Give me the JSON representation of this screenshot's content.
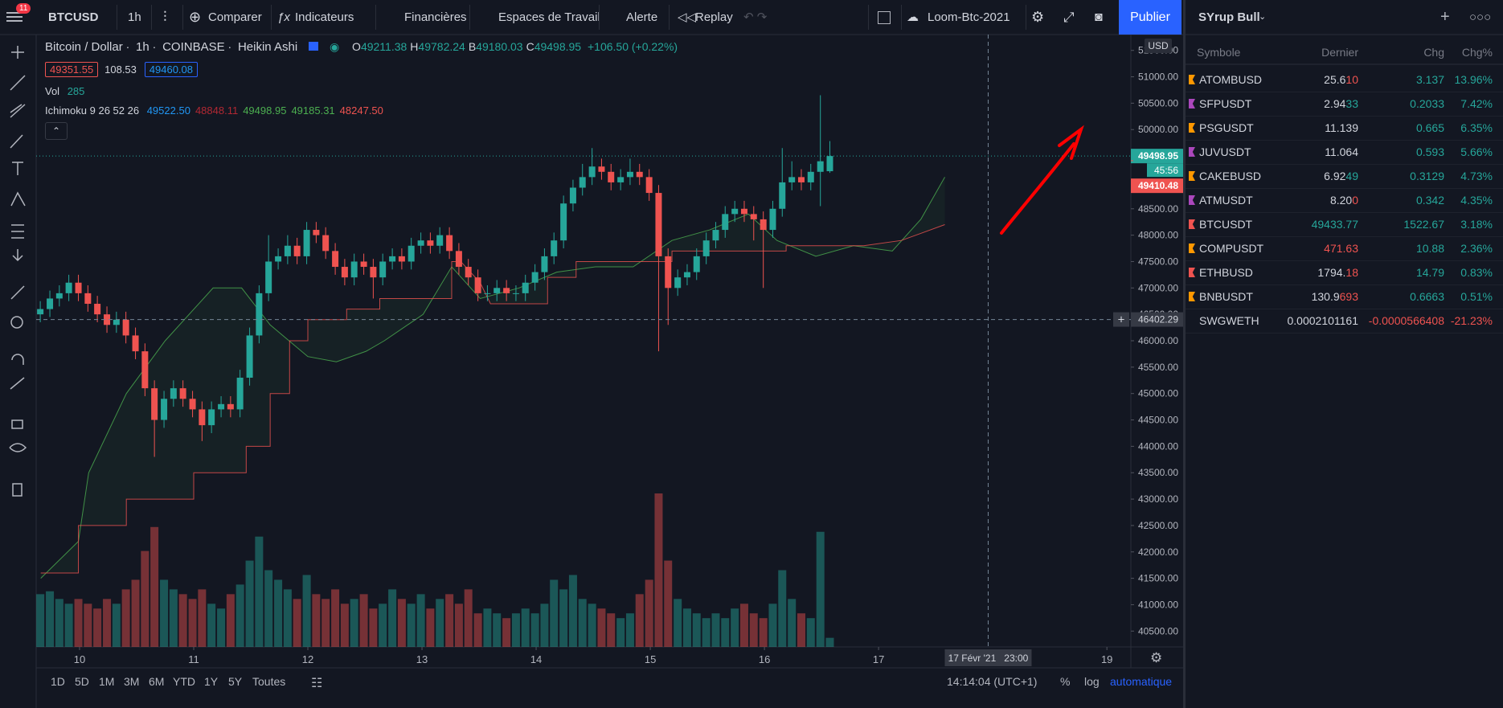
{
  "toolbar": {
    "badge": "11",
    "symbol": "BTCUSD",
    "interval": "1h",
    "compare": "Comparer",
    "indicators": "Indicateurs",
    "financials": "Financières",
    "workspaces": "Espaces de Travail",
    "alert": "Alerte",
    "replay": "Replay",
    "layout": "Loom-Btc-2021",
    "publish": "Publier"
  },
  "legend": {
    "title": [
      "Bitcoin / Dollar",
      "1h",
      "COINBASE",
      "Heikin Ashi"
    ],
    "ohlc": [
      {
        "key": "O",
        "value": "49211.38"
      },
      {
        "key": "H",
        "value": "49782.24"
      },
      {
        "key": "B",
        "value": "49180.03"
      },
      {
        "key": "C",
        "value": "49498.95"
      }
    ],
    "change": "+106.50 (+0.22%)",
    "bid": "49351.55",
    "spread": "108.53",
    "ask": "49460.08",
    "vol": "Vol",
    "ichimoku": "Ichimoku 9 26 52 26",
    "ichimoku_values": [
      {
        "text": "49522.50",
        "color": "#2196f3"
      },
      {
        "text": "48848.11",
        "color": "#b22833"
      },
      {
        "text": "49498.95",
        "color": "#4caf50"
      },
      {
        "text": "49185.31",
        "color": "#4caf50"
      },
      {
        "text": "48247.50",
        "color": "#ef5350"
      }
    ]
  },
  "chart": {
    "type": "candlestick",
    "currency": "USD",
    "up_color": "#26a69a",
    "down_color": "#ef5350",
    "grid": false,
    "xlim": [
      9.62,
      19.21
    ],
    "xticks": [
      10,
      11,
      12,
      13,
      14,
      15,
      16,
      17,
      19
    ],
    "ylim": [
      40200,
      51800
    ],
    "yticks": [
      {
        "value": 40500,
        "label": "40500.00"
      },
      {
        "value": 41000,
        "label": "41000.00"
      },
      {
        "value": 41500,
        "label": "41500.00"
      },
      {
        "value": 42000,
        "label": "42000.00"
      },
      {
        "value": 42500,
        "label": "42500.00"
      },
      {
        "value": 43000,
        "label": "43000.00"
      },
      {
        "value": 43500,
        "label": "43500.00"
      },
      {
        "value": 44000,
        "label": "44000.00"
      },
      {
        "value": 44500,
        "label": "44500.00"
      },
      {
        "value": 45000,
        "label": "45000.00"
      },
      {
        "value": 45500,
        "label": "45500.00"
      },
      {
        "value": 46000,
        "label": "46000.00"
      },
      {
        "value": 46500,
        "label": "46500.00"
      },
      {
        "value": 47000,
        "label": "47000.00"
      },
      {
        "value": 47500,
        "label": "47500.00"
      },
      {
        "value": 48000,
        "label": "48000.00"
      },
      {
        "value": 48500,
        "label": "48500.00"
      },
      {
        "value": 49000,
        "label": "49000.00"
      },
      {
        "value": 49500,
        "label": "49500.00"
      },
      {
        "value": 50000,
        "label": "50000.00"
      },
      {
        "value": 50500,
        "label": "50500.00"
      },
      {
        "value": 51000,
        "label": "51000.00"
      },
      {
        "value": 51500,
        "label": "51500.00"
      }
    ],
    "candles": [
      [
        9.656,
        46500,
        46750,
        46350,
        46600
      ],
      [
        9.74,
        46600,
        46950,
        46450,
        46800
      ],
      [
        9.823,
        46800,
        47050,
        46650,
        46900
      ],
      [
        9.906,
        46900,
        47250,
        46750,
        47100
      ],
      [
        9.99,
        47100,
        47250,
        46750,
        46900
      ],
      [
        10.073,
        46900,
        47050,
        46550,
        46700
      ],
      [
        10.156,
        46700,
        46850,
        46350,
        46500
      ],
      [
        10.24,
        46500,
        46650,
        46150,
        46300
      ],
      [
        10.323,
        46300,
        46550,
        46150,
        46400
      ],
      [
        10.406,
        46400,
        46550,
        45950,
        46100
      ],
      [
        10.49,
        46100,
        46250,
        45650,
        45800
      ],
      [
        10.573,
        45800,
        45950,
        44950,
        45100
      ],
      [
        10.656,
        45100,
        45250,
        43800,
        44500
      ],
      [
        10.74,
        44500,
        45050,
        44350,
        44900
      ],
      [
        10.823,
        44900,
        45250,
        44750,
        45100
      ],
      [
        10.906,
        45100,
        45250,
        44750,
        44900
      ],
      [
        10.99,
        44900,
        45050,
        44550,
        44700
      ],
      [
        11.073,
        44700,
        44850,
        44100,
        44400
      ],
      [
        11.156,
        44400,
        44850,
        44250,
        44700
      ],
      [
        11.24,
        44700,
        44950,
        44550,
        44800
      ],
      [
        11.323,
        44800,
        44950,
        44550,
        44700
      ],
      [
        11.406,
        44700,
        45450,
        44550,
        45300
      ],
      [
        11.49,
        45300,
        46250,
        45150,
        46100
      ],
      [
        11.573,
        46100,
        47050,
        45950,
        46900
      ],
      [
        11.656,
        46900,
        48000,
        46750,
        47500
      ],
      [
        11.74,
        47500,
        47750,
        47350,
        47600
      ],
      [
        11.823,
        47600,
        48000,
        47450,
        47800
      ],
      [
        11.906,
        47800,
        47950,
        47450,
        47600
      ],
      [
        11.99,
        47600,
        48250,
        47450,
        48100
      ],
      [
        12.073,
        48100,
        48250,
        47850,
        48000
      ],
      [
        12.156,
        48000,
        48150,
        47550,
        47700
      ],
      [
        12.24,
        47700,
        47850,
        47250,
        47400
      ],
      [
        12.323,
        47400,
        47550,
        47050,
        47200
      ],
      [
        12.406,
        47200,
        47650,
        47050,
        47500
      ],
      [
        12.49,
        47500,
        47650,
        47250,
        47400
      ],
      [
        12.573,
        47400,
        47550,
        46800,
        47200
      ],
      [
        12.656,
        47200,
        47650,
        47050,
        47500
      ],
      [
        12.74,
        47500,
        47750,
        47350,
        47600
      ],
      [
        12.823,
        47600,
        47750,
        47350,
        47500
      ],
      [
        12.906,
        47500,
        47950,
        47350,
        47800
      ],
      [
        12.99,
        47800,
        48050,
        47650,
        47900
      ],
      [
        13.073,
        47900,
        48050,
        47650,
        47800
      ],
      [
        13.156,
        47800,
        48150,
        47650,
        48000
      ],
      [
        13.24,
        48000,
        48150,
        47550,
        47700
      ],
      [
        13.323,
        47700,
        47850,
        47250,
        47400
      ],
      [
        13.406,
        47400,
        47550,
        47050,
        47200
      ],
      [
        13.49,
        47200,
        47350,
        46750,
        46900
      ],
      [
        13.573,
        46900,
        47050,
        46750,
        46900
      ],
      [
        13.656,
        46900,
        47150,
        46750,
        47000
      ],
      [
        13.74,
        47000,
        47150,
        46750,
        46900
      ],
      [
        13.823,
        46900,
        47050,
        46750,
        46900
      ],
      [
        13.906,
        46900,
        47250,
        46750,
        47100
      ],
      [
        13.99,
        47100,
        47450,
        46950,
        47300
      ],
      [
        14.073,
        47300,
        47750,
        47150,
        47600
      ],
      [
        14.156,
        47600,
        48050,
        47450,
        47900
      ],
      [
        14.24,
        47900,
        48750,
        47750,
        48600
      ],
      [
        14.323,
        48600,
        49050,
        48450,
        48900
      ],
      [
        14.406,
        48900,
        49350,
        48750,
        49100
      ],
      [
        14.49,
        49100,
        49650,
        48950,
        49300
      ],
      [
        14.573,
        49300,
        49450,
        49050,
        49200
      ],
      [
        14.656,
        49200,
        49350,
        48850,
        49000
      ],
      [
        14.74,
        49000,
        49250,
        48850,
        49100
      ],
      [
        14.823,
        49100,
        49450,
        48950,
        49200
      ],
      [
        14.906,
        49200,
        49350,
        48950,
        49100
      ],
      [
        14.99,
        49100,
        49250,
        48650,
        48800
      ],
      [
        15.073,
        48800,
        48950,
        45800,
        47600
      ],
      [
        15.156,
        47600,
        47750,
        46300,
        47000
      ],
      [
        15.24,
        47000,
        47350,
        46850,
        47200
      ],
      [
        15.323,
        47200,
        47450,
        47050,
        47300
      ],
      [
        15.406,
        47300,
        47750,
        47150,
        47600
      ],
      [
        15.49,
        47600,
        48050,
        47450,
        47900
      ],
      [
        15.573,
        47900,
        48250,
        47750,
        48100
      ],
      [
        15.656,
        48100,
        48550,
        47950,
        48400
      ],
      [
        15.74,
        48400,
        48650,
        48250,
        48500
      ],
      [
        15.823,
        48500,
        48650,
        48250,
        48400
      ],
      [
        15.906,
        48400,
        48550,
        47900,
        48300
      ],
      [
        15.99,
        48300,
        48450,
        47000,
        48100
      ],
      [
        16.073,
        48100,
        48650,
        47950,
        48500
      ],
      [
        16.156,
        48500,
        49650,
        48350,
        49000
      ],
      [
        16.24,
        49000,
        49400,
        48850,
        49100
      ],
      [
        16.323,
        49100,
        49250,
        48850,
        49000
      ],
      [
        16.406,
        49000,
        49350,
        48850,
        49200
      ],
      [
        16.49,
        49200,
        50650,
        48550,
        49400
      ],
      [
        16.573,
        49211.38,
        49782.24,
        49180.03,
        49498.95
      ]
    ],
    "volumes": [
      1650,
      1740,
      1500,
      1350,
      1500,
      1350,
      1200,
      1500,
      1350,
      1800,
      2100,
      3000,
      3750,
      2100,
      1800,
      1650,
      1500,
      1800,
      1350,
      1200,
      1650,
      1950,
      2700,
      3450,
      2400,
      2100,
      1800,
      1500,
      2250,
      1650,
      1500,
      1800,
      1350,
      1500,
      1650,
      1200,
      1350,
      1800,
      1500,
      1350,
      1650,
      1200,
      1500,
      1650,
      1350,
      1800,
      1050,
      1200,
      1050,
      900,
      1050,
      1200,
      1050,
      1350,
      2100,
      1800,
      2250,
      1500,
      1350,
      1200,
      1050,
      900,
      1050,
      1650,
      2100,
      4800,
      2700,
      1500,
      1200,
      1050,
      900,
      1050,
      900,
      1200,
      1350,
      1050,
      900,
      1350,
      2400,
      1500,
      1050,
      900,
      3600,
      285
    ],
    "span_a": {
      "color": "#4caf50",
      "points": [
        [
          9.66,
          41500
        ],
        [
          9.99,
          42200
        ],
        [
          10.08,
          43500
        ],
        [
          10.41,
          45000
        ],
        [
          10.75,
          46000
        ],
        [
          11.17,
          47000
        ],
        [
          11.42,
          47000
        ],
        [
          11.67,
          46300
        ],
        [
          12.0,
          45700
        ],
        [
          12.25,
          45600
        ],
        [
          12.51,
          45800
        ],
        [
          12.67,
          46000
        ],
        [
          13.01,
          46500
        ],
        [
          13.26,
          47400
        ],
        [
          13.51,
          46800
        ],
        [
          13.85,
          47000
        ],
        [
          14.18,
          47300
        ],
        [
          14.52,
          47400
        ],
        [
          14.85,
          47400
        ],
        [
          15.19,
          47900
        ],
        [
          15.52,
          48100
        ],
        [
          15.86,
          48400
        ],
        [
          16.11,
          47900
        ],
        [
          16.45,
          47600
        ],
        [
          16.78,
          47800
        ],
        [
          17.12,
          47700
        ],
        [
          17.37,
          48300
        ],
        [
          17.58,
          49100
        ]
      ]
    },
    "span_b": {
      "color": "#ef5350",
      "points": [
        [
          9.66,
          41600
        ],
        [
          9.99,
          41600
        ],
        [
          9.99,
          42500
        ],
        [
          10.41,
          42500
        ],
        [
          10.41,
          43000
        ],
        [
          11.0,
          43000
        ],
        [
          11.0,
          43500
        ],
        [
          11.46,
          43500
        ],
        [
          11.46,
          44000
        ],
        [
          11.67,
          44000
        ],
        [
          11.67,
          45000
        ],
        [
          11.84,
          45000
        ],
        [
          11.84,
          46000
        ],
        [
          12.0,
          46000
        ],
        [
          12.0,
          46400
        ],
        [
          12.34,
          46400
        ],
        [
          12.34,
          46600
        ],
        [
          12.63,
          46600
        ],
        [
          12.63,
          46800
        ],
        [
          13.26,
          46800
        ],
        [
          13.26,
          47500
        ],
        [
          13.34,
          47500
        ],
        [
          13.51,
          47100
        ],
        [
          13.6,
          46700
        ],
        [
          14.1,
          46700
        ],
        [
          14.1,
          47200
        ],
        [
          14.35,
          47200
        ],
        [
          14.35,
          47500
        ],
        [
          15.19,
          47500
        ],
        [
          15.19,
          47700
        ],
        [
          16.19,
          47700
        ],
        [
          16.19,
          47800
        ],
        [
          16.87,
          47800
        ],
        [
          17.2,
          47900
        ],
        [
          17.58,
          48200
        ]
      ]
    },
    "last_price": {
      "value": 49498.95,
      "label": "49498.95"
    },
    "countdown": "45:56",
    "prev_price": {
      "value": 49410.48,
      "label": "49410.48"
    },
    "crosshair": {
      "price": {
        "value": 46402.29,
        "label": "46402.29"
      },
      "time": {
        "value": 17.96,
        "label": "17 Févr '21   23:00"
      }
    }
  },
  "watchlist": {
    "title": "SYrup Bull",
    "columns": [
      "Symbole",
      "Dernier",
      "Chg",
      "Chg%"
    ],
    "rows": [
      {
        "flag": "#ff9800",
        "symbol": "ATOMBUSD",
        "last": [
          "25.6",
          "10"
        ],
        "last_color": "#ef5350",
        "chg": "3.137",
        "chg_pct": "13.96%",
        "chg_color": "#26a69a"
      },
      {
        "flag": "#ab47bc",
        "symbol": "SFPUSDT",
        "last": [
          "2.94",
          "33"
        ],
        "last_color": "#26a69a",
        "chg": "0.2033",
        "chg_pct": "7.42%",
        "chg_color": "#26a69a"
      },
      {
        "flag": "#ff9800",
        "symbol": "PSGUSDT",
        "last": [
          "11.139"
        ],
        "chg": "0.665",
        "chg_pct": "6.35%",
        "chg_color": "#26a69a"
      },
      {
        "flag": "#ab47bc",
        "symbol": "JUVUSDT",
        "last": [
          "11.064"
        ],
        "chg": "0.593",
        "chg_pct": "5.66%",
        "chg_color": "#26a69a"
      },
      {
        "flag": "#ff9800",
        "symbol": "CAKEBUSD",
        "last": [
          "6.92",
          "49"
        ],
        "last_color": "#26a69a",
        "chg": "0.3129",
        "chg_pct": "4.73%",
        "chg_color": "#26a69a"
      },
      {
        "flag": "#ab47bc",
        "symbol": "ATMUSDT",
        "last": [
          "8.20",
          "0"
        ],
        "last_color": "#ef5350",
        "chg": "0.342",
        "chg_pct": "4.35%",
        "chg_color": "#26a69a"
      },
      {
        "flag": "#ef5350",
        "symbol": "BTCUSDT",
        "last": [
          "49433.77"
        ],
        "last_color": "#26a69a",
        "chg": "1522.67",
        "chg_pct": "3.18%",
        "chg_color": "#26a69a"
      },
      {
        "flag": "#ff9800",
        "symbol": "COMPUSDT",
        "last": [
          "471.63"
        ],
        "last_color": "#ef5350",
        "chg": "10.88",
        "chg_pct": "2.36%",
        "chg_color": "#26a69a"
      },
      {
        "flag": "#ef5350",
        "symbol": "ETHBUSD",
        "last": [
          "1794.",
          "18"
        ],
        "last_color": "#ef5350",
        "chg": "14.79",
        "chg_pct": "0.83%",
        "chg_color": "#26a69a"
      },
      {
        "flag": "#ff9800",
        "symbol": "BNBUSDT",
        "last": [
          "130.9",
          "693"
        ],
        "last_color": "#ef5350",
        "chg": "0.6663",
        "chg_pct": "0.51%",
        "chg_color": "#26a69a"
      },
      {
        "symbol": "SWGWETH",
        "last": [
          "0.0002101161"
        ],
        "chg": "-0.0000566408",
        "chg_pct": "-21.23%",
        "chg_color": "#ef5350"
      }
    ]
  },
  "bottom": {
    "ranges": [
      "1D",
      "5D",
      "1M",
      "3M",
      "6M",
      "YTD",
      "1Y",
      "5Y",
      "Toutes"
    ],
    "clock": "14:14:04 (UTC+1)",
    "percent": "%",
    "log": "log",
    "auto": "automatique"
  }
}
